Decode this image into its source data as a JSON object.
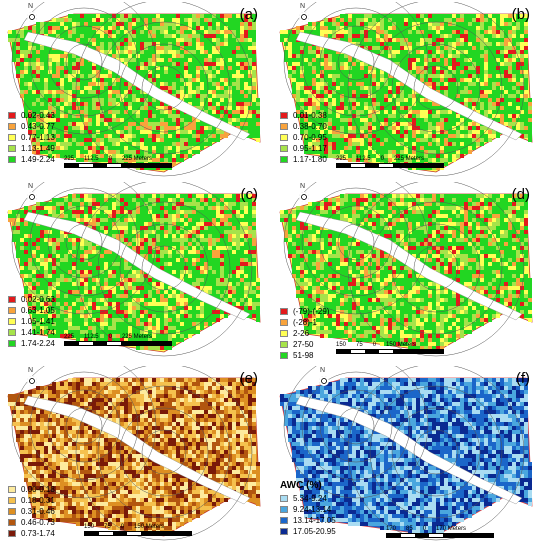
{
  "north_label": "N",
  "scale_unit": "Meters",
  "panels": [
    {
      "letter": "(a)",
      "legend_title": "",
      "colors": [
        "#e31a1c",
        "#f8a33c",
        "#ffff55",
        "#a6e34a",
        "#22d622"
      ],
      "road_color": "#ffffff",
      "legend": [
        {
          "label": "0.02-0.43",
          "color": "#e31a1c"
        },
        {
          "label": "0.43-0.77",
          "color": "#f8a33c"
        },
        {
          "label": "0.77-1.13",
          "color": "#ffff55"
        },
        {
          "label": "1.13-1.49",
          "color": "#a6e34a"
        },
        {
          "label": "1.49-2.24",
          "color": "#22d622"
        }
      ],
      "scale": [
        "225",
        "112.5",
        "0",
        "225 Meters"
      ]
    },
    {
      "letter": "(b)",
      "legend_title": "",
      "colors": [
        "#e31a1c",
        "#f8a33c",
        "#ffff55",
        "#a6e34a",
        "#22d622"
      ],
      "road_color": "#ffffff",
      "legend": [
        {
          "label": "0.01-0.38",
          "color": "#e31a1c"
        },
        {
          "label": "0.38-0.70",
          "color": "#f8a33c"
        },
        {
          "label": "0.70-0.95",
          "color": "#ffff55"
        },
        {
          "label": "0.95-1.17",
          "color": "#a6e34a"
        },
        {
          "label": "1.17-1.80",
          "color": "#22d622"
        }
      ],
      "scale": [
        "225",
        "112.5",
        "0",
        "225 Meters"
      ]
    },
    {
      "letter": "(c)",
      "legend_title": "",
      "colors": [
        "#e31a1c",
        "#f8a33c",
        "#ffff55",
        "#a6e34a",
        "#22d622"
      ],
      "road_color": "#ffffff",
      "legend": [
        {
          "label": "0.02-0.63",
          "color": "#e31a1c"
        },
        {
          "label": "0.63-1.05",
          "color": "#f8a33c"
        },
        {
          "label": "1.05-1.41",
          "color": "#ffff55"
        },
        {
          "label": "1.41-1.74",
          "color": "#a6e34a"
        },
        {
          "label": "1.74-2.24",
          "color": "#22d622"
        }
      ],
      "scale": [
        "225",
        "112.5",
        "0",
        "225 Meters"
      ]
    },
    {
      "letter": "(d)",
      "legend_title": "",
      "colors": [
        "#e31a1c",
        "#f8a33c",
        "#ffff55",
        "#a6e34a",
        "#22d622"
      ],
      "road_color": "#ffffff",
      "legend": [
        {
          "label": "(-79)-(-29)",
          "color": "#e31a1c"
        },
        {
          "label": "(-28)-1",
          "color": "#f8a33c"
        },
        {
          "label": "2-26",
          "color": "#ffff55"
        },
        {
          "label": "27-50",
          "color": "#a6e34a"
        },
        {
          "label": "51-98",
          "color": "#22d622"
        }
      ],
      "scale": [
        "150",
        "75",
        "0",
        "150 Meters"
      ]
    },
    {
      "letter": "(e)",
      "legend_title": "",
      "colors": [
        "#fdeb9e",
        "#f5c14e",
        "#dd8f22",
        "#b2560f",
        "#7a1a08"
      ],
      "road_color": "#ffffff",
      "legend": [
        {
          "label": "0.00-0.18",
          "color": "#fdeb9e"
        },
        {
          "label": "0.18-0.31",
          "color": "#f5c14e"
        },
        {
          "label": "0.31-0.46",
          "color": "#dd8f22"
        },
        {
          "label": "0.46-0.73",
          "color": "#b2560f"
        },
        {
          "label": "0.73-1.74",
          "color": "#7a1a08"
        }
      ],
      "scale": [
        "150",
        "75",
        "0",
        "150 Meters"
      ]
    },
    {
      "letter": "(f)",
      "legend_title": "AWC (%)",
      "colors": [
        "#a9dcf2",
        "#4aa6de",
        "#1b66c9",
        "#0a2a92"
      ],
      "road_color": "#ffffff",
      "legend": [
        {
          "label": "5.34-9.24",
          "color": "#a9dcf2"
        },
        {
          "label": "9.24-13.14",
          "color": "#4aa6de"
        },
        {
          "label": "13.14-17.05",
          "color": "#1b66c9"
        },
        {
          "label": "17.05-20.95",
          "color": "#0a2a92"
        }
      ],
      "scale": [
        "170",
        "85",
        "0",
        "170 Meters"
      ]
    }
  ]
}
